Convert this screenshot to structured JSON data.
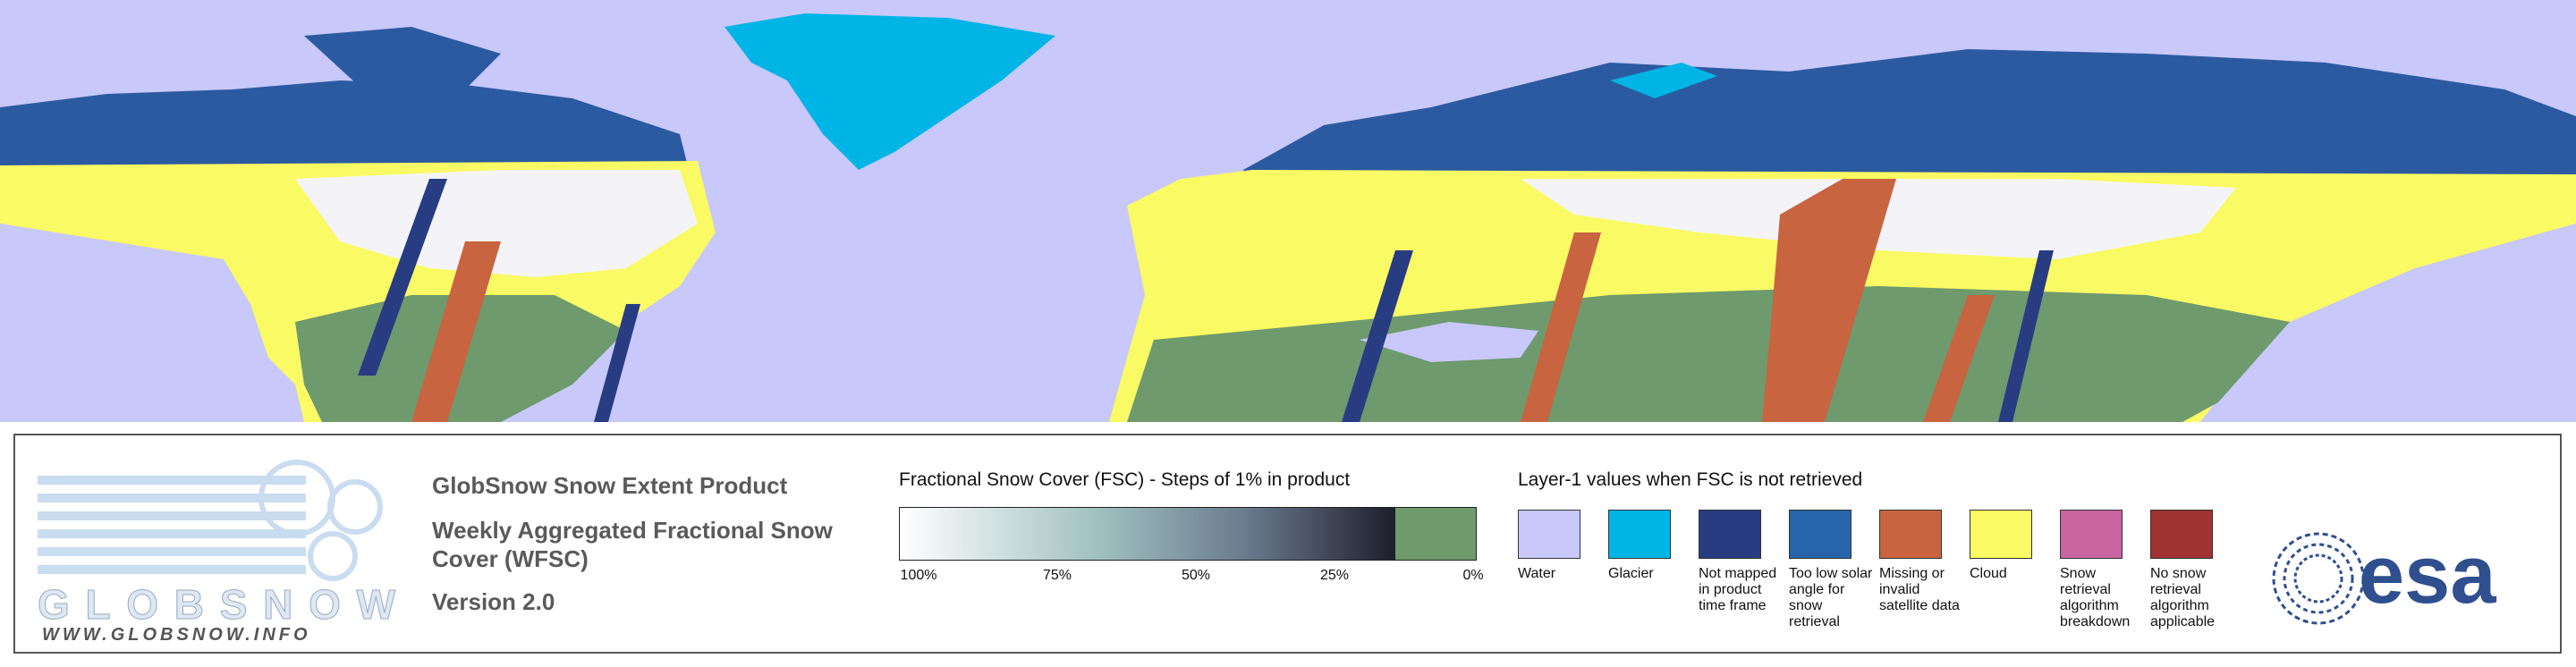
{
  "logo": {
    "name": "GLOBSNOW",
    "url": "WWW.GLOBSNOW.INFO"
  },
  "product": {
    "title": "GlobSnow Snow Extent Product",
    "subtitle": "Weekly Aggregated Fractional Snow Cover (WFSC)",
    "version": "Version 2.0"
  },
  "fsc_legend": {
    "title": "Fractional Snow Cover (FSC) - Steps of 1% in product",
    "ticks": [
      "100%",
      "75%",
      "50%",
      "25%",
      "0%"
    ]
  },
  "layer1_legend": {
    "title": "Layer-1 values when FSC is not retrieved",
    "items": [
      {
        "label": "Water",
        "color": "#c8c8fa"
      },
      {
        "label": "Glacier",
        "color": "#00b4e6"
      },
      {
        "label": "Not mapped in product time frame",
        "color": "#283c82"
      },
      {
        "label": "Too low solar angle for snow retrieval",
        "color": "#2864aa"
      },
      {
        "label": "Missing or invalid satellite data",
        "color": "#c86440"
      },
      {
        "label": "Cloud",
        "color": "#fafa64"
      },
      {
        "label": "Snow retrieval algorithm breakdown",
        "color": "#c864a0"
      },
      {
        "label": "No snow retrieval algorithm applicable",
        "color": "#a03232"
      }
    ]
  },
  "agency": "esa"
}
